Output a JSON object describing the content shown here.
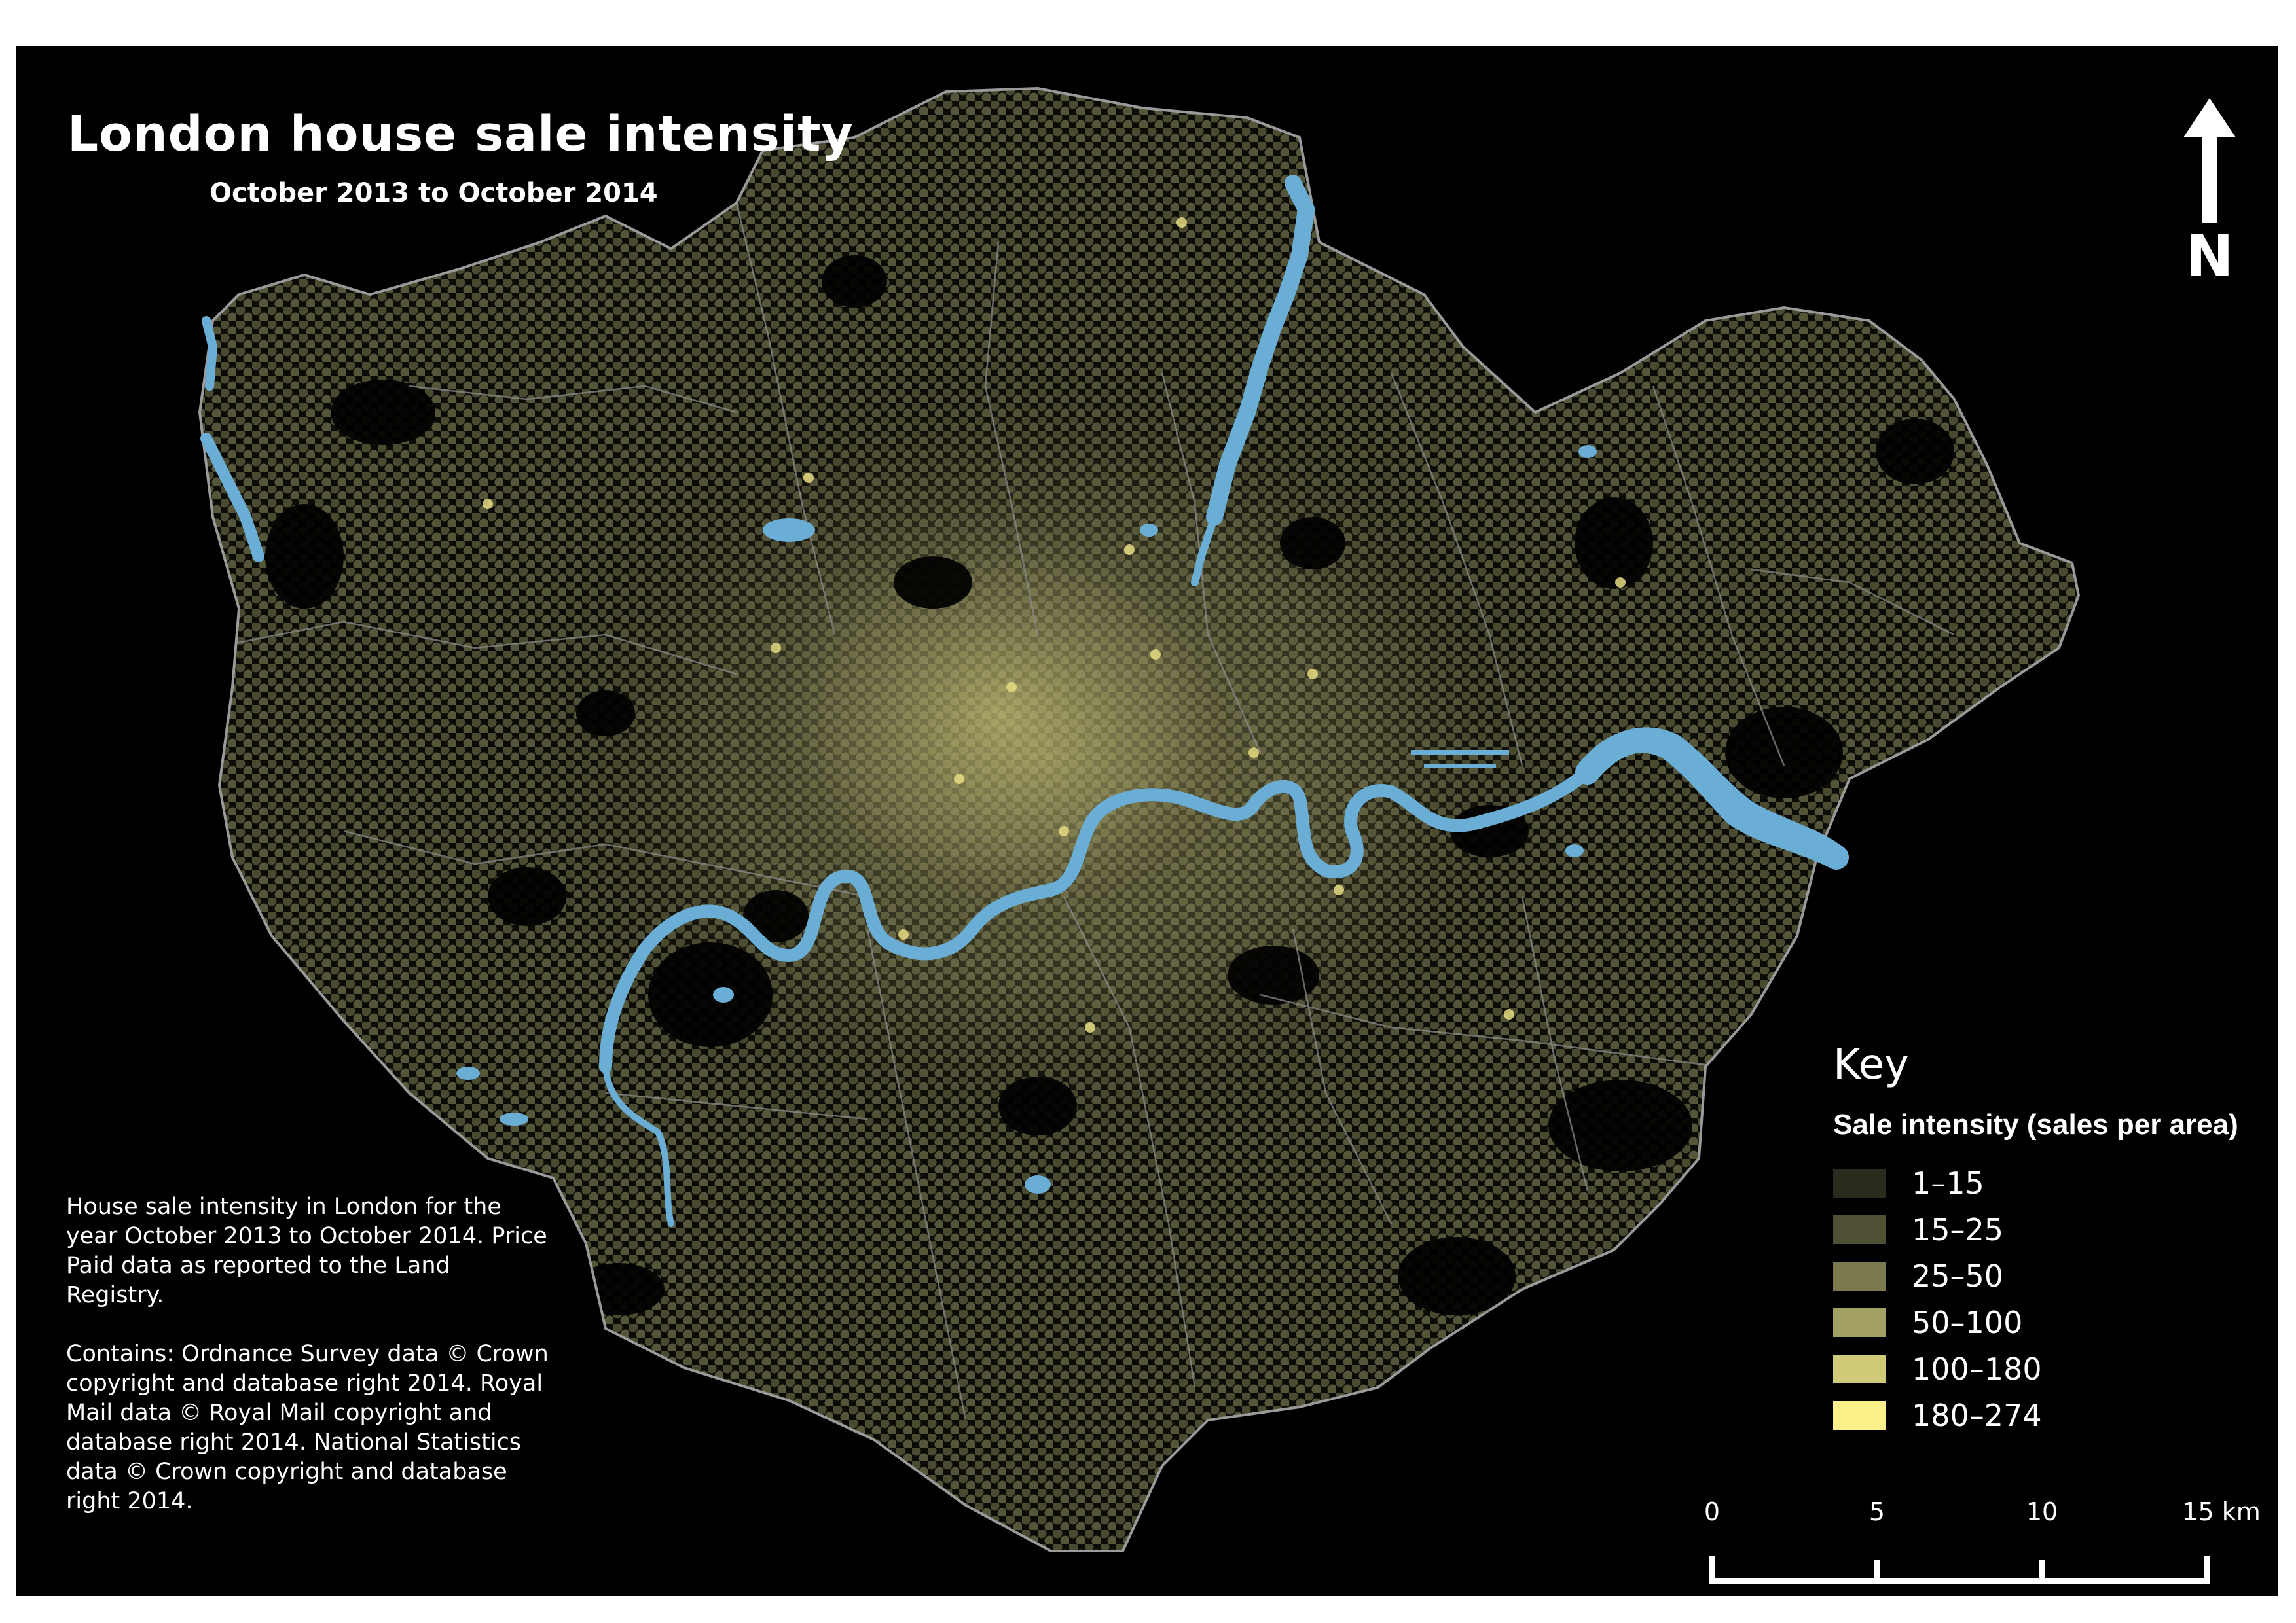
{
  "title": "London house sale intensity",
  "subtitle": "October 2013 to October 2014",
  "north_arrow": {
    "label": "N",
    "icon": "north-arrow-icon"
  },
  "description": {
    "paragraph1": "House sale intensity in London for the year October 2013 to October 2014. Price Paid data as reported to the Land Registry.",
    "paragraph2": "Contains: Ordnance Survey data © Crown copyright and database right 2014. Royal Mail data © Royal Mail copyright and database right 2014. National Statistics data © Crown copyright and database right 2014."
  },
  "legend": {
    "title": "Key",
    "subtitle": "Sale intensity (sales per area)",
    "classes": [
      {
        "label": "1–15",
        "color": "#2a2b1c"
      },
      {
        "label": "15–25",
        "color": "#4f4f33"
      },
      {
        "label": "25–50",
        "color": "#7a7a4e"
      },
      {
        "label": "50–100",
        "color": "#a3a063"
      },
      {
        "label": "100–180",
        "color": "#cfca78"
      },
      {
        "label": "180–274",
        "color": "#fbf08a"
      }
    ]
  },
  "scale_bar": {
    "ticks": [
      "0",
      "5",
      "10",
      "15 km"
    ]
  },
  "colors": {
    "background": "#000000",
    "water": "#6aaed6",
    "boundary": "#8c8c8c",
    "text": "#ffffff"
  }
}
